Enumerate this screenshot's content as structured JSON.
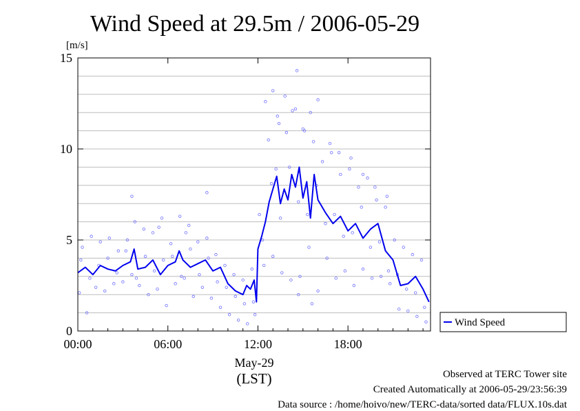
{
  "chart_data": {
    "type": "scatter",
    "title": "Wind Speed at 29.5m / 2006-05-29",
    "ylabel": "[m/s]",
    "xlabel": "(LST)",
    "date_label": "May-29",
    "xlim": [
      0,
      23.5
    ],
    "ylim": [
      0,
      15
    ],
    "x_tick_labels": [
      "00:00",
      "06:00",
      "12:00",
      "18:00"
    ],
    "y_tick_labels": [
      "0",
      "5",
      "10",
      "15"
    ],
    "x_ticks": [
      0,
      6,
      12,
      18
    ],
    "y_ticks": [
      0,
      5,
      10,
      15
    ],
    "grid": true,
    "legend": {
      "position": "right",
      "entries": [
        "Wind Speed"
      ]
    },
    "colors": {
      "line": "#0000ee",
      "scatter": "#6f6fff"
    },
    "series": [
      {
        "name": "Wind Speed",
        "kind": "line",
        "x": [
          0.0,
          0.5,
          1.0,
          1.5,
          2.0,
          2.5,
          3.0,
          3.5,
          3.75,
          4.0,
          4.5,
          5.0,
          5.5,
          6.0,
          6.5,
          6.75,
          7.0,
          7.5,
          8.0,
          8.5,
          9.0,
          9.5,
          10.0,
          10.5,
          11.0,
          11.25,
          11.5,
          11.75,
          11.9,
          12.0,
          12.25,
          12.5,
          12.75,
          13.0,
          13.25,
          13.5,
          13.75,
          14.0,
          14.25,
          14.5,
          14.75,
          15.0,
          15.25,
          15.5,
          15.75,
          16.0,
          16.5,
          17.0,
          17.5,
          18.0,
          18.5,
          19.0,
          19.5,
          20.0,
          20.5,
          21.0,
          21.5,
          22.0,
          22.5,
          23.0,
          23.4
        ],
        "y": [
          3.2,
          3.5,
          3.1,
          3.6,
          3.4,
          3.3,
          3.6,
          3.8,
          4.5,
          3.4,
          3.5,
          3.9,
          3.1,
          3.6,
          3.8,
          4.4,
          3.9,
          3.5,
          3.7,
          3.9,
          3.3,
          3.5,
          2.6,
          2.2,
          2.0,
          2.5,
          2.3,
          2.8,
          1.6,
          4.5,
          5.2,
          6.0,
          7.1,
          7.8,
          8.5,
          7.0,
          7.8,
          7.2,
          8.6,
          7.9,
          9.0,
          7.3,
          8.2,
          6.2,
          8.6,
          7.2,
          6.5,
          5.9,
          6.3,
          5.5,
          5.9,
          5.1,
          5.6,
          5.9,
          4.4,
          3.9,
          2.5,
          2.6,
          3.0,
          2.3,
          1.6
        ]
      },
      {
        "name": "",
        "kind": "scatter",
        "x": [
          0.1,
          0.3,
          0.6,
          0.9,
          1.2,
          1.5,
          1.8,
          2.1,
          2.4,
          2.7,
          3.0,
          3.3,
          3.6,
          3.8,
          4.1,
          4.4,
          4.7,
          5.0,
          5.3,
          5.6,
          5.9,
          6.2,
          6.5,
          6.8,
          7.1,
          7.4,
          7.7,
          8.0,
          8.3,
          8.6,
          8.9,
          9.2,
          9.5,
          9.8,
          10.1,
          10.4,
          10.7,
          11.0,
          11.3,
          11.6,
          11.8,
          12.1,
          12.4,
          12.7,
          13.0,
          13.3,
          13.6,
          13.9,
          14.2,
          14.5,
          14.8,
          15.1,
          15.4,
          15.7,
          16.0,
          16.3,
          16.6,
          16.9,
          17.2,
          17.5,
          17.8,
          18.1,
          18.4,
          18.7,
          19.0,
          19.3,
          19.6,
          19.9,
          20.2,
          20.5,
          20.8,
          21.1,
          21.4,
          21.7,
          22.0,
          22.3,
          22.6,
          22.9,
          23.2,
          0.2,
          0.8,
          1.4,
          2.0,
          2.6,
          3.2,
          3.9,
          4.5,
          5.1,
          5.7,
          6.3,
          6.9,
          7.5,
          8.1,
          8.7,
          9.3,
          9.9,
          10.5,
          11.1,
          11.7,
          12.3,
          12.9,
          13.5,
          14.1,
          14.7,
          15.3,
          15.9,
          16.5,
          17.1,
          17.7,
          18.3,
          18.9,
          19.5,
          20.1,
          20.7,
          21.3,
          21.9,
          22.5,
          23.1,
          12.5,
          13.0,
          13.4,
          13.8,
          14.3,
          14.6,
          15.0,
          15.5,
          16.0,
          16.8,
          17.4,
          18.2,
          19.0,
          19.8,
          20.6,
          3.6,
          5.4,
          7.2,
          8.6,
          13.2,
          14.7,
          15.6
        ],
        "y": [
          2.1,
          4.6,
          1.0,
          5.2,
          2.4,
          4.9,
          2.2,
          5.1,
          2.6,
          4.4,
          2.7,
          5.0,
          3.1,
          6.0,
          2.5,
          5.6,
          2.0,
          5.4,
          2.3,
          6.2,
          1.4,
          4.8,
          2.6,
          6.3,
          2.9,
          5.8,
          1.9,
          4.9,
          2.4,
          5.1,
          1.8,
          4.2,
          1.3,
          3.6,
          0.9,
          3.1,
          0.6,
          2.8,
          0.4,
          3.4,
          0.9,
          6.4,
          3.6,
          10.5,
          4.1,
          11.8,
          3.2,
          10.9,
          2.8,
          12.2,
          3.0,
          11.0,
          4.6,
          10.4,
          2.2,
          9.3,
          4.0,
          9.8,
          2.9,
          8.6,
          3.3,
          8.9,
          2.5,
          7.9,
          3.4,
          8.4,
          2.9,
          7.2,
          3.0,
          6.8,
          2.6,
          5.0,
          1.2,
          4.6,
          1.1,
          4.2,
          0.8,
          3.9,
          0.5,
          3.9,
          2.9,
          3.6,
          4.0,
          3.2,
          4.4,
          2.9,
          4.1,
          3.3,
          3.9,
          4.1,
          3.0,
          4.5,
          3.1,
          4.0,
          2.7,
          2.4,
          1.9,
          1.5,
          1.6,
          5.0,
          8.1,
          6.2,
          9.0,
          7.1,
          6.4,
          8.0,
          5.9,
          6.4,
          5.2,
          5.4,
          6.8,
          4.6,
          4.9,
          3.3,
          3.1,
          2.3,
          2.1,
          1.3,
          12.6,
          13.2,
          11.4,
          12.9,
          12.1,
          14.3,
          11.1,
          12.0,
          12.7,
          10.3,
          9.8,
          9.5,
          8.6,
          7.9,
          7.4,
          7.4,
          5.7,
          5.4,
          7.6,
          8.9,
          2.0,
          1.5
        ]
      }
    ]
  },
  "footer": {
    "observed": "Observed at TERC Tower site",
    "created": "Created Automatically at 2006-05-29/23:56:39",
    "source": "Data source : /home/hoivo/new/TERC-data/sorted  data/FLUX.10s.dat"
  }
}
